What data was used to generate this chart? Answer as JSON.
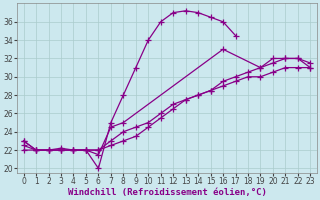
{
  "background_color": "#cce8ee",
  "grid_color": "#aacccc",
  "line_color": "#880088",
  "xlabel": "Windchill (Refroidissement éolien,°C)",
  "xlim": [
    -0.5,
    23.5
  ],
  "ylim": [
    19.5,
    38.0
  ],
  "yticks": [
    20,
    22,
    24,
    26,
    28,
    30,
    32,
    34,
    36
  ],
  "xticks": [
    0,
    1,
    2,
    3,
    4,
    5,
    6,
    7,
    8,
    9,
    10,
    11,
    12,
    13,
    14,
    15,
    16,
    17,
    18,
    19,
    20,
    21,
    22,
    23
  ],
  "series1_x": [
    0,
    1,
    2,
    3,
    4,
    5,
    6,
    7,
    8,
    9,
    10,
    11,
    12,
    13,
    14,
    15,
    16,
    17
  ],
  "series1_y": [
    23,
    22,
    22,
    22.2,
    22,
    22,
    20,
    25,
    28,
    31,
    34,
    36,
    37,
    37.2,
    37,
    36.5,
    36,
    34.5
  ],
  "series2_x": [
    0,
    1,
    2,
    3,
    4,
    5,
    6,
    7,
    8,
    16,
    19,
    20,
    21,
    22,
    23
  ],
  "series2_y": [
    23,
    22,
    22,
    22,
    22,
    22,
    21.5,
    24.5,
    25,
    33,
    31,
    32,
    32,
    32,
    31.5
  ],
  "series3_x": [
    0,
    1,
    2,
    3,
    4,
    5,
    6,
    7,
    8,
    9,
    10,
    11,
    12,
    13,
    14,
    15,
    16,
    17,
    18,
    19,
    20,
    21,
    22,
    23
  ],
  "series3_y": [
    22,
    22,
    22,
    22,
    22,
    22,
    22,
    22.5,
    23,
    23.5,
    24.5,
    25.5,
    26.5,
    27.5,
    28,
    28.5,
    29.5,
    30,
    30.5,
    31,
    31.5,
    32,
    32,
    31
  ],
  "series4_x": [
    0,
    1,
    2,
    3,
    4,
    5,
    6,
    7,
    8,
    9,
    10,
    11,
    12,
    13,
    14,
    15,
    16,
    17,
    18,
    19,
    20,
    21,
    22,
    23
  ],
  "series4_y": [
    22.5,
    22,
    22,
    22,
    22,
    22,
    22,
    23,
    24,
    24.5,
    25,
    26,
    27,
    27.5,
    28,
    28.5,
    29,
    29.5,
    30,
    30,
    30.5,
    31,
    31,
    31
  ],
  "marker": "+",
  "marker_size": 4,
  "linewidth": 0.9,
  "xlabel_fontsize": 6.5,
  "tick_fontsize": 5.5
}
